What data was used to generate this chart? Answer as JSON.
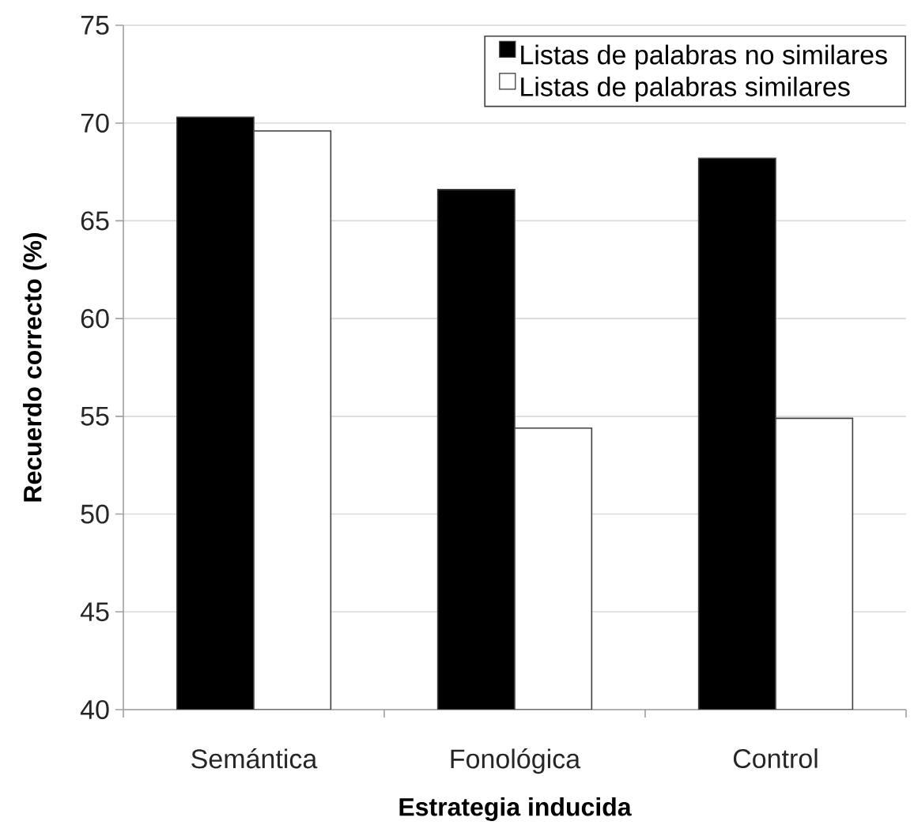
{
  "chart_data": {
    "type": "bar",
    "xlabel": "Estrategia inducida",
    "ylabel": "Recuerdo correcto (%)",
    "categories": [
      "Semántica",
      "Fonológica",
      "Control"
    ],
    "series": [
      {
        "name": "Listas de palabras no similares",
        "color": "#000000",
        "values": [
          70.3,
          66.6,
          68.2
        ]
      },
      {
        "name": "Listas de palabras similares",
        "color": "#ffffff",
        "values": [
          69.6,
          54.4,
          54.9
        ]
      }
    ],
    "ylim": [
      40,
      75
    ],
    "yticks": [
      40,
      45,
      50,
      55,
      60,
      65,
      70,
      75
    ],
    "grid": "y",
    "legend": "top right"
  }
}
